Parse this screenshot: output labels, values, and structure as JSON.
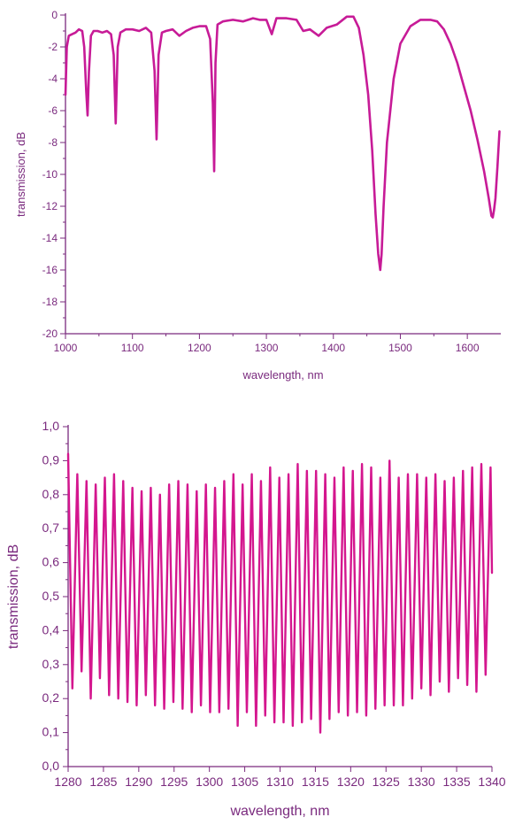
{
  "colors": {
    "axis": "#7a2a7e",
    "line_top": "#c71b97",
    "line_bottom": "#d4168e"
  },
  "chart_data": [
    {
      "type": "line",
      "title": "",
      "xlabel": "wavelength, nm",
      "ylabel": "transmission, dB",
      "xlim": [
        1000,
        1650
      ],
      "ylim": [
        -20,
        0
      ],
      "xticks": [
        1000,
        1100,
        1200,
        1300,
        1400,
        1500,
        1600
      ],
      "yticks": [
        0,
        -2,
        -4,
        -6,
        -8,
        -10,
        -12,
        -14,
        -16,
        -18,
        -20
      ],
      "xtick_labels": [
        "1000",
        "1100",
        "1200",
        "1300",
        "1400",
        "1500",
        "1600"
      ],
      "ytick_labels": [
        "0",
        "-2",
        "-4",
        "-6",
        "-8",
        "-10",
        "-12",
        "-14",
        "-16",
        "-18",
        "-20"
      ],
      "grid": false,
      "series": [
        {
          "color": "#c71b97",
          "x": [
            1000,
            1002,
            1005,
            1010,
            1015,
            1020,
            1025,
            1028,
            1031,
            1033,
            1035,
            1038,
            1042,
            1048,
            1055,
            1062,
            1068,
            1072,
            1075,
            1078,
            1082,
            1090,
            1100,
            1110,
            1120,
            1128,
            1133,
            1136,
            1139,
            1144,
            1150,
            1160,
            1170,
            1180,
            1190,
            1200,
            1210,
            1216,
            1220,
            1222,
            1224,
            1227,
            1235,
            1250,
            1265,
            1280,
            1290,
            1300,
            1308,
            1315,
            1330,
            1345,
            1355,
            1365,
            1378,
            1390,
            1405,
            1420,
            1430,
            1438,
            1445,
            1452,
            1458,
            1463,
            1467,
            1470,
            1472,
            1475,
            1480,
            1490,
            1500,
            1515,
            1530,
            1545,
            1555,
            1565,
            1575,
            1585,
            1595,
            1605,
            1615,
            1625,
            1632,
            1636,
            1638,
            1640,
            1642,
            1645,
            1648
          ],
          "y": [
            -5,
            -2.0,
            -1.3,
            -1.2,
            -1.1,
            -0.9,
            -1.0,
            -2.0,
            -4.8,
            -6.3,
            -3.6,
            -1.3,
            -1.0,
            -1.0,
            -1.1,
            -1.0,
            -1.2,
            -2.5,
            -6.8,
            -2.0,
            -1.1,
            -0.9,
            -0.9,
            -1.0,
            -0.8,
            -1.1,
            -3.5,
            -7.8,
            -2.5,
            -1.1,
            -1.0,
            -0.9,
            -1.3,
            -1.0,
            -0.8,
            -0.7,
            -0.7,
            -1.5,
            -5.5,
            -9.8,
            -3.0,
            -0.6,
            -0.4,
            -0.3,
            -0.4,
            -0.2,
            -0.3,
            -0.3,
            -1.2,
            -0.2,
            -0.2,
            -0.3,
            -1.0,
            -0.9,
            -1.3,
            -0.8,
            -0.6,
            -0.1,
            -0.1,
            -0.8,
            -2.5,
            -5.0,
            -8.5,
            -12.5,
            -15.0,
            -16.0,
            -15.0,
            -12.0,
            -8.0,
            -4.0,
            -1.8,
            -0.7,
            -0.3,
            -0.3,
            -0.4,
            -0.9,
            -1.8,
            -3.0,
            -4.5,
            -6.0,
            -7.8,
            -9.8,
            -11.5,
            -12.6,
            -12.7,
            -12.2,
            -11.5,
            -9.5,
            -7.3
          ]
        }
      ]
    },
    {
      "type": "line",
      "title": "",
      "xlabel": "wavelength, nm",
      "ylabel": "transmission, dB",
      "xlim": [
        1280,
        1340
      ],
      "ylim": [
        0,
        1
      ],
      "xticks": [
        1280,
        1285,
        1290,
        1295,
        1300,
        1305,
        1310,
        1315,
        1320,
        1325,
        1330,
        1335,
        1340
      ],
      "yticks": [
        0,
        0.1,
        0.2,
        0.3,
        0.4,
        0.5,
        0.6,
        0.7,
        0.8,
        0.9,
        1.0
      ],
      "xtick_labels": [
        "1280",
        "1285",
        "1290",
        "1295",
        "1300",
        "1305",
        "1310",
        "1315",
        "1320",
        "1325",
        "1330",
        "1335",
        "1340"
      ],
      "ytick_labels": [
        "0,0",
        "0,1",
        "0,2",
        "0,3",
        "0,4",
        "0,5",
        "0,6",
        "0,7",
        "0,8",
        "0,9",
        "1,0"
      ],
      "grid": false,
      "series": [
        {
          "color": "#d4168e",
          "x": [
            1280.0,
            1280.6,
            1281.3,
            1281.9,
            1282.6,
            1283.2,
            1283.9,
            1284.5,
            1285.2,
            1285.8,
            1286.5,
            1287.1,
            1287.8,
            1288.4,
            1289.1,
            1289.7,
            1290.4,
            1291.0,
            1291.7,
            1292.3,
            1293.0,
            1293.6,
            1294.3,
            1294.9,
            1295.6,
            1296.2,
            1296.9,
            1297.5,
            1298.2,
            1298.8,
            1299.5,
            1300.1,
            1300.8,
            1301.4,
            1302.1,
            1302.7,
            1303.4,
            1304.0,
            1304.7,
            1305.3,
            1306.0,
            1306.6,
            1307.3,
            1307.9,
            1308.6,
            1309.2,
            1309.9,
            1310.5,
            1311.2,
            1311.8,
            1312.5,
            1313.1,
            1313.8,
            1314.4,
            1315.1,
            1315.7,
            1316.4,
            1317.0,
            1317.7,
            1318.3,
            1319.0,
            1319.6,
            1320.3,
            1320.9,
            1321.6,
            1322.2,
            1322.9,
            1323.5,
            1324.2,
            1324.8,
            1325.5,
            1326.1,
            1326.8,
            1327.4,
            1328.1,
            1328.7,
            1329.4,
            1330.0,
            1330.7,
            1331.3,
            1332.0,
            1332.6,
            1333.3,
            1333.9,
            1334.6,
            1335.2,
            1335.9,
            1336.5,
            1337.2,
            1337.8,
            1338.5,
            1339.1,
            1339.8
          ],
          "y": [
            0.92,
            0.23,
            0.86,
            0.28,
            0.84,
            0.2,
            0.83,
            0.26,
            0.85,
            0.21,
            0.86,
            0.2,
            0.84,
            0.19,
            0.82,
            0.18,
            0.81,
            0.21,
            0.82,
            0.18,
            0.8,
            0.17,
            0.83,
            0.19,
            0.84,
            0.17,
            0.83,
            0.16,
            0.81,
            0.18,
            0.83,
            0.16,
            0.82,
            0.16,
            0.84,
            0.17,
            0.86,
            0.12,
            0.83,
            0.16,
            0.86,
            0.12,
            0.84,
            0.15,
            0.88,
            0.13,
            0.85,
            0.13,
            0.86,
            0.12,
            0.89,
            0.13,
            0.87,
            0.14,
            0.87,
            0.1,
            0.86,
            0.14,
            0.85,
            0.16,
            0.88,
            0.15,
            0.87,
            0.16,
            0.89,
            0.15,
            0.88,
            0.17,
            0.85,
            0.18,
            0.9,
            0.18,
            0.85,
            0.18,
            0.86,
            0.2,
            0.86,
            0.23,
            0.85,
            0.21,
            0.86,
            0.25,
            0.84,
            0.22,
            0.85,
            0.26,
            0.87,
            0.24,
            0.88,
            0.22,
            0.89,
            0.27,
            0.88
          ],
          "y_end": 0.57
        }
      ]
    }
  ]
}
